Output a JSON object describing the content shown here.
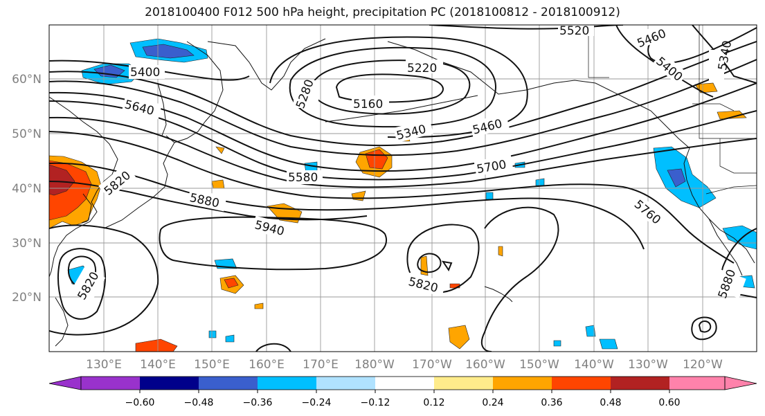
{
  "title": "2018100400 F012 500 hPa height, precipitation PC (2018100812 - 2018100912)",
  "map": {
    "lat_labels": [
      "60°N",
      "50°N",
      "40°N",
      "30°N",
      "20°N"
    ],
    "lon_labels": [
      "130°E",
      "140°E",
      "150°E",
      "160°E",
      "170°E",
      "180°W",
      "170°W",
      "160°W",
      "150°W",
      "140°W",
      "130°W",
      "120°W"
    ],
    "contour_labels": [
      "5520",
      "5460",
      "5340",
      "5400",
      "5220",
      "5280",
      "5160",
      "5400",
      "5640",
      "5340",
      "5460",
      "5580",
      "5700",
      "5820",
      "5880",
      "5940",
      "5760",
      "5820",
      "5820",
      "5880"
    ],
    "label_color": "#808080"
  },
  "colorbar": {
    "ticks": [
      "−0.60",
      "−0.48",
      "−0.36",
      "−0.24",
      "−0.12",
      "0.12",
      "0.24",
      "0.36",
      "0.48",
      "0.60"
    ],
    "colors": [
      "#9932cc",
      "#00008b",
      "#3a5fcd",
      "#00bfff",
      "#b0e2ff",
      "#ffffff",
      "#ffec8b",
      "#ffa500",
      "#ff4500",
      "#b22222",
      "#ff82ab"
    ]
  }
}
